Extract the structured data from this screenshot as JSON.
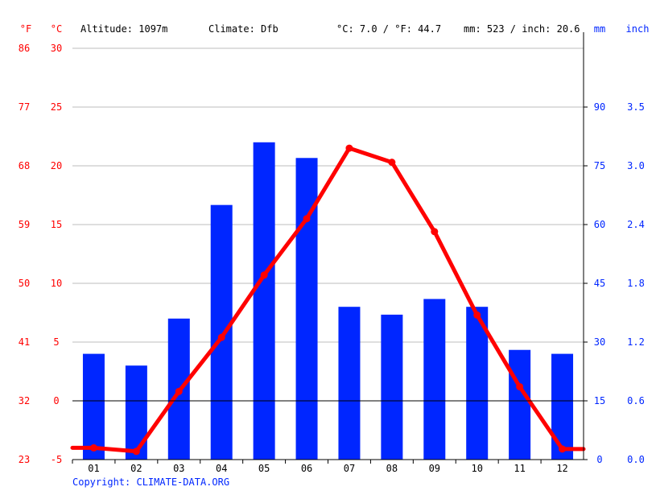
{
  "colors": {
    "temperature": "#ff0000",
    "precipitation": "#0026ff",
    "grid": "#bdbdbd",
    "zero_line": "#000000",
    "text": "#000000",
    "copyright": "#0026ff"
  },
  "header": {
    "unit_f": "°F",
    "unit_c": "°C",
    "altitude": "Altitude: 1097m",
    "climate": "Climate: Dfb",
    "temperature_summary": "°C: 7.0 / °F: 44.7",
    "precipitation_summary": "mm: 523 / inch: 20.6",
    "unit_mm": "mm",
    "unit_inch": "inch"
  },
  "footer": {
    "copyright": "Copyright: CLIMATE-DATA.ORG"
  },
  "chart_data": {
    "type": "bar+line",
    "categories": [
      "01",
      "02",
      "03",
      "04",
      "05",
      "06",
      "07",
      "08",
      "09",
      "10",
      "11",
      "12"
    ],
    "series": [
      {
        "type": "bar",
        "axis": "right",
        "values": [
          27,
          24,
          36,
          65,
          81,
          77,
          39,
          37,
          41,
          39,
          28,
          27
        ]
      },
      {
        "type": "line",
        "axis": "left",
        "values": [
          -4.0,
          -4.3,
          0.8,
          5.4,
          10.7,
          15.5,
          21.5,
          20.3,
          14.4,
          7.3,
          1.2,
          -4.1
        ]
      }
    ],
    "left_axis_c": {
      "ticks": [
        -5,
        0,
        5,
        10,
        15,
        20,
        25,
        30
      ],
      "tick_labels": [
        "-5",
        "0",
        "5",
        "10",
        "15",
        "20",
        "25",
        "30"
      ],
      "range": [
        -5,
        30
      ]
    },
    "left_axis_f": {
      "tick_labels": [
        "23",
        "32",
        "41",
        "50",
        "59",
        "68",
        "77",
        "86"
      ]
    },
    "right_axis_mm": {
      "ticks": [
        0,
        15,
        30,
        45,
        60,
        75,
        90
      ],
      "tick_labels": [
        "0",
        "15",
        "30",
        "45",
        "60",
        "75",
        "90"
      ],
      "range": [
        0,
        105
      ]
    },
    "right_axis_inch": {
      "tick_labels": [
        "0.0",
        "0.6",
        "1.2",
        "1.8",
        "2.4",
        "3.0",
        "3.5"
      ]
    },
    "grid": true
  }
}
